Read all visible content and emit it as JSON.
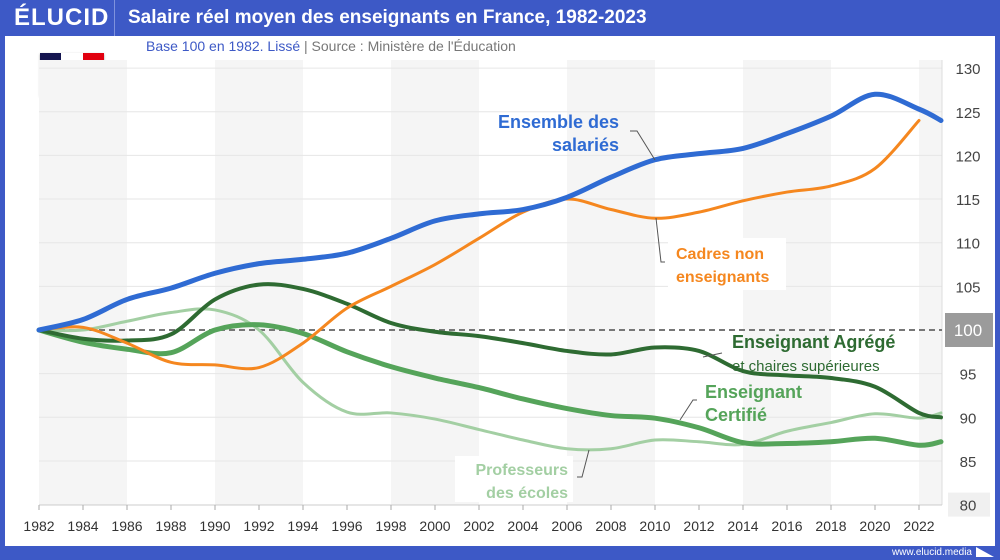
{
  "header": {
    "logo": "ÉLUCID",
    "title": "Salaire réel moyen des enseignants en France, 1982-2023"
  },
  "subtitle": {
    "base": "Base 100 en 1982. Lissé",
    "separator": "|",
    "source": "Source : Ministère de l'Éducation"
  },
  "flag": {
    "colors": [
      "#14154f",
      "#ffffff",
      "#e1000f"
    ]
  },
  "footer": {
    "url": "www.elucid.media"
  },
  "chart_data": {
    "type": "line",
    "title": "Salaire réel moyen des enseignants en France, 1982-2023",
    "xlim": [
      1982,
      2023
    ],
    "ylim": [
      80,
      130
    ],
    "x_ticks": [
      1982,
      1984,
      1986,
      1988,
      1990,
      1992,
      1994,
      1996,
      1998,
      2000,
      2002,
      2004,
      2006,
      2008,
      2010,
      2012,
      2014,
      2016,
      2018,
      2020,
      2022
    ],
    "y_ticks": [
      80,
      85,
      90,
      95,
      100,
      105,
      110,
      115,
      120,
      125,
      130
    ],
    "y_axis_position": "right",
    "reference_line": 100,
    "grid": true,
    "series": [
      {
        "name": "Ensemble des salariés",
        "color": "#2f6bd3",
        "x": [
          1982,
          1984,
          1986,
          1988,
          1990,
          1992,
          1994,
          1996,
          1998,
          2000,
          2002,
          2004,
          2006,
          2008,
          2010,
          2012,
          2014,
          2016,
          2018,
          2020,
          2022,
          2023
        ],
        "values": [
          100,
          101.2,
          103.5,
          104.8,
          106.5,
          107.6,
          108.1,
          108.8,
          110.5,
          112.5,
          113.3,
          113.8,
          115.2,
          117.5,
          119.5,
          120.2,
          120.8,
          122.5,
          124.5,
          127.0,
          125.3,
          124.0
        ]
      },
      {
        "name": "Cadres non enseignants",
        "color": "#f5871f",
        "x": [
          1982,
          1984,
          1986,
          1988,
          1990,
          1992,
          1994,
          1996,
          1998,
          2000,
          2002,
          2004,
          2006,
          2008,
          2010,
          2012,
          2014,
          2016,
          2018,
          2020,
          2022
        ],
        "values": [
          100,
          100.3,
          98.5,
          96.3,
          96.0,
          95.7,
          98.5,
          102.5,
          105,
          107.5,
          110.5,
          113.5,
          115,
          113.8,
          112.8,
          113.5,
          114.8,
          115.8,
          116.5,
          118.5,
          124.0
        ]
      },
      {
        "name": "Enseignant Agrégé",
        "subname": "et chaires supérieures",
        "color": "#2e6b32",
        "x": [
          1982,
          1984,
          1986,
          1988,
          1990,
          1992,
          1994,
          1996,
          1998,
          2000,
          2002,
          2004,
          2006,
          2008,
          2010,
          2012,
          2014,
          2016,
          2018,
          2020,
          2022,
          2023
        ],
        "values": [
          100,
          99,
          98.8,
          99.5,
          103.5,
          105.2,
          104.7,
          103,
          100.8,
          99.8,
          99.3,
          98.5,
          97.6,
          97.2,
          98,
          97.6,
          95.3,
          94.8,
          94.5,
          93.5,
          90.5,
          90
        ]
      },
      {
        "name": "Enseignant Certifié",
        "color": "#55a45a",
        "x": [
          1982,
          1984,
          1986,
          1988,
          1990,
          1992,
          1994,
          1996,
          1998,
          2000,
          2002,
          2004,
          2006,
          2008,
          2010,
          2012,
          2014,
          2016,
          2018,
          2020,
          2022,
          2023
        ],
        "values": [
          100,
          98.6,
          97.8,
          97.4,
          100,
          100.6,
          99.6,
          97.5,
          95.8,
          94.5,
          93.4,
          92.1,
          91,
          90.2,
          89.9,
          88.8,
          87.1,
          87,
          87.2,
          87.6,
          86.8,
          87.2
        ]
      },
      {
        "name": "Professeurs des écoles",
        "color": "#a3cfa3",
        "x": [
          1982,
          1984,
          1986,
          1988,
          1990,
          1992,
          1994,
          1996,
          1998,
          2000,
          2002,
          2004,
          2006,
          2008,
          2010,
          2012,
          2014,
          2016,
          2018,
          2020,
          2022,
          2023
        ],
        "values": [
          100,
          100,
          101,
          102,
          102.3,
          100,
          94,
          90.6,
          90.5,
          89.8,
          88.6,
          87.4,
          86.4,
          86.4,
          87.4,
          87.2,
          86.9,
          88.4,
          89.4,
          90.4,
          89.9,
          90.5
        ]
      }
    ],
    "labels": {
      "ensemble": [
        "Ensemble des",
        "salariés"
      ],
      "cadres": [
        "Cadres non",
        "enseignants"
      ],
      "agrege": [
        "Enseignant Agrégé",
        "et chaires supérieures"
      ],
      "certifie": [
        "Enseignant",
        "Certifié"
      ],
      "professeurs": [
        "Professeurs",
        "des écoles"
      ]
    }
  }
}
